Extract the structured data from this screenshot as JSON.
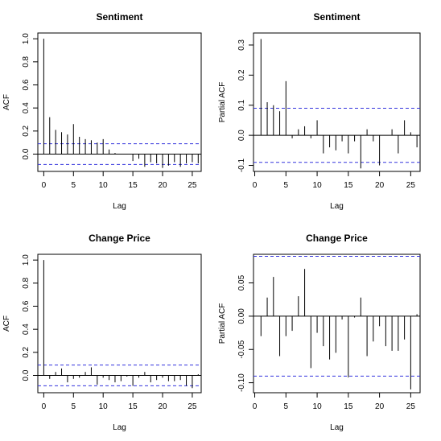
{
  "chart_data": [
    {
      "type": "bar",
      "title": "Sentiment",
      "xlabel": "Lag",
      "ylabel": "ACF",
      "xlim": [
        -1,
        26.5
      ],
      "ylim": [
        -0.15,
        1.05
      ],
      "xticks": [
        0,
        5,
        10,
        15,
        20,
        25
      ],
      "yticks": [
        0.0,
        0.2,
        0.4,
        0.6,
        0.8,
        1.0
      ],
      "ytick_labels": [
        "0.0",
        "0.2",
        "0.4",
        "0.6",
        "0.8",
        "1.0"
      ],
      "conf_bound": 0.09,
      "lags": [
        0,
        1,
        2,
        3,
        4,
        5,
        6,
        7,
        8,
        9,
        10,
        11,
        12,
        13,
        14,
        15,
        16,
        17,
        18,
        19,
        20,
        21,
        22,
        23,
        24,
        25,
        26
      ],
      "values": [
        1.0,
        0.32,
        0.21,
        0.19,
        0.17,
        0.26,
        0.15,
        0.13,
        0.12,
        0.1,
        0.13,
        0.04,
        0.01,
        0.0,
        0.0,
        -0.06,
        -0.04,
        -0.11,
        -0.07,
        -0.08,
        -0.12,
        -0.1,
        -0.07,
        -0.11,
        -0.08,
        -0.07,
        -0.08
      ]
    },
    {
      "type": "bar",
      "title": "Sentiment",
      "xlabel": "Lag",
      "ylabel": "Partial ACF",
      "xlim": [
        -0.2,
        26.5
      ],
      "ylim": [
        -0.12,
        0.34
      ],
      "xticks": [
        0,
        5,
        10,
        15,
        20,
        25
      ],
      "yticks": [
        -0.1,
        0.0,
        0.1,
        0.2,
        0.3
      ],
      "ytick_labels": [
        "-0.1",
        "0.0",
        "0.1",
        "0.2",
        "0.3"
      ],
      "conf_bound": 0.09,
      "lags": [
        1,
        2,
        3,
        4,
        5,
        6,
        7,
        8,
        9,
        10,
        11,
        12,
        13,
        14,
        15,
        16,
        17,
        18,
        19,
        20,
        21,
        22,
        23,
        24,
        25,
        26
      ],
      "values": [
        0.32,
        0.11,
        0.1,
        0.08,
        0.18,
        -0.01,
        0.02,
        0.03,
        -0.01,
        0.05,
        -0.06,
        -0.04,
        -0.05,
        -0.02,
        -0.06,
        -0.02,
        -0.11,
        0.02,
        -0.02,
        -0.1,
        0.0,
        0.02,
        -0.06,
        0.05,
        0.01,
        -0.04
      ]
    },
    {
      "type": "bar",
      "title": "Change Price",
      "xlabel": "Lag",
      "ylabel": "ACF",
      "xlim": [
        -1,
        26.5
      ],
      "ylim": [
        -0.15,
        1.05
      ],
      "xticks": [
        0,
        5,
        10,
        15,
        20,
        25
      ],
      "yticks": [
        0.0,
        0.2,
        0.4,
        0.6,
        0.8,
        1.0
      ],
      "ytick_labels": [
        "0.0",
        "0.2",
        "0.4",
        "0.6",
        "0.8",
        "1.0"
      ],
      "conf_bound": 0.09,
      "lags": [
        0,
        1,
        2,
        3,
        4,
        5,
        6,
        7,
        8,
        9,
        10,
        11,
        12,
        13,
        14,
        15,
        16,
        17,
        18,
        19,
        20,
        21,
        22,
        23,
        24,
        25,
        26
      ],
      "values": [
        1.0,
        -0.03,
        0.03,
        0.06,
        -0.06,
        -0.03,
        -0.02,
        0.03,
        0.07,
        -0.08,
        -0.02,
        -0.04,
        -0.06,
        -0.05,
        -0.01,
        -0.09,
        -0.02,
        0.03,
        -0.06,
        -0.04,
        -0.02,
        -0.05,
        -0.05,
        -0.04,
        -0.09,
        -0.11,
        0.01
      ]
    },
    {
      "type": "bar",
      "title": "Change Price",
      "xlabel": "Lag",
      "ylabel": "Partial ACF",
      "xlim": [
        -0.2,
        26.5
      ],
      "ylim": [
        -0.115,
        0.093
      ],
      "xticks": [
        0,
        5,
        10,
        15,
        20,
        25
      ],
      "yticks": [
        -0.1,
        -0.05,
        0.0,
        0.05
      ],
      "ytick_labels": [
        "-0.10",
        "-0.05",
        "0.00",
        "0.05"
      ],
      "conf_bound": 0.09,
      "lags": [
        1,
        2,
        3,
        4,
        5,
        6,
        7,
        8,
        9,
        10,
        11,
        12,
        13,
        14,
        15,
        16,
        17,
        18,
        19,
        20,
        21,
        22,
        23,
        24,
        25,
        26
      ],
      "values": [
        -0.03,
        0.028,
        0.059,
        -0.06,
        -0.03,
        -0.022,
        0.03,
        0.071,
        -0.078,
        -0.025,
        -0.045,
        -0.065,
        -0.055,
        -0.005,
        -0.092,
        -0.002,
        0.028,
        -0.06,
        -0.038,
        -0.015,
        -0.045,
        -0.052,
        -0.052,
        -0.035,
        -0.11,
        0.003
      ]
    }
  ]
}
